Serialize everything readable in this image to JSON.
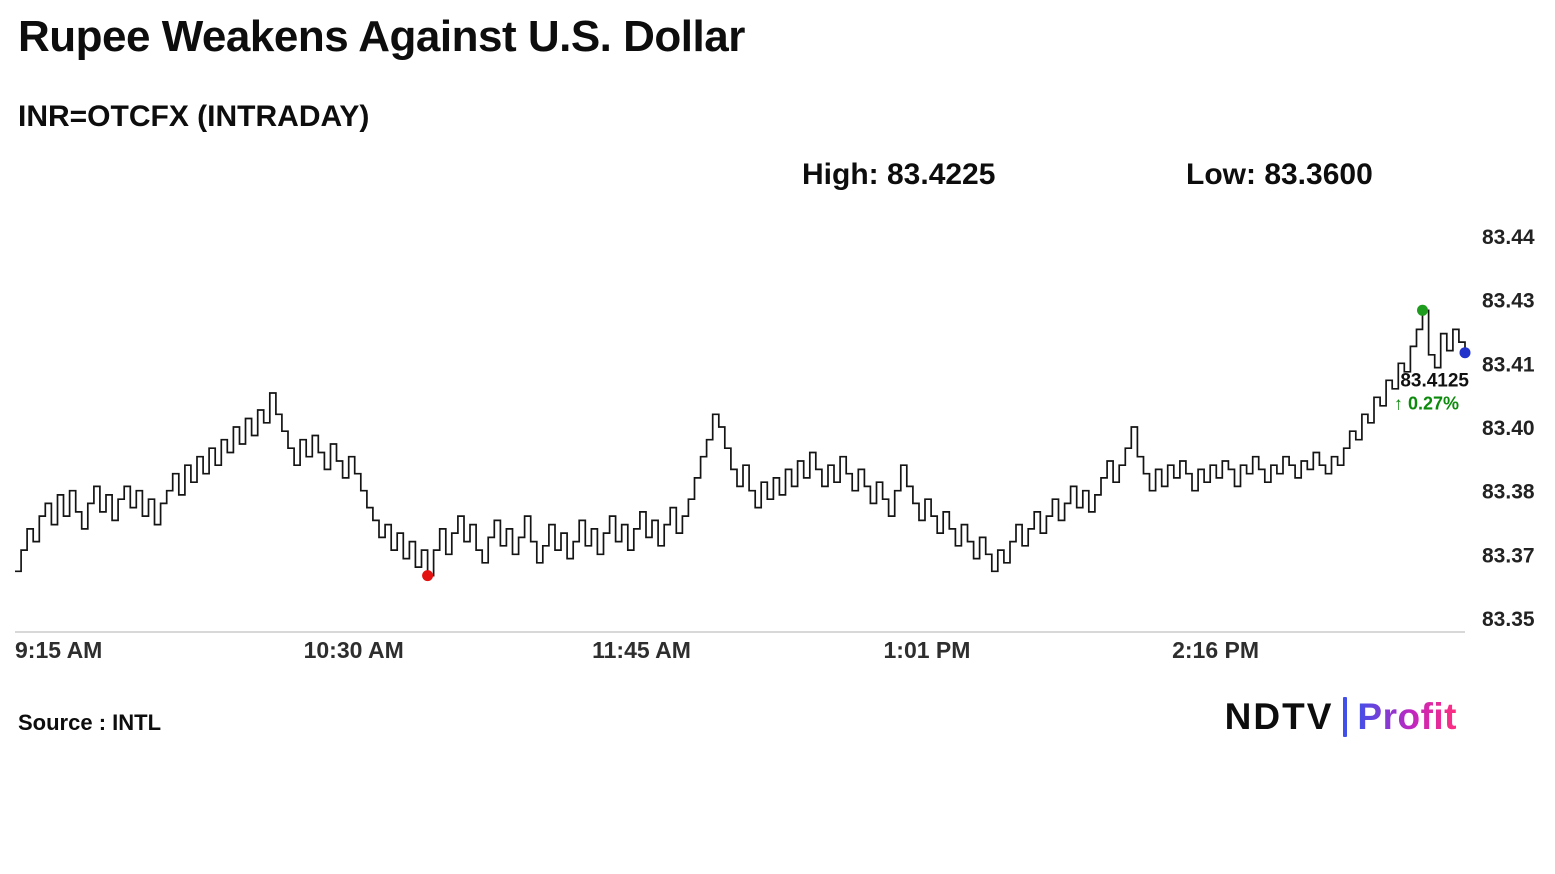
{
  "header": {
    "title": "Rupee Weakens Against U.S. Dollar",
    "subtitle": "INR=OTCFX (INTRADAY)",
    "high_label": "High:",
    "high_value": "83.4225",
    "low_label": "Low:",
    "low_value": "83.3600"
  },
  "annotation": {
    "price": "83.4125",
    "change": "↑ 0.27%"
  },
  "footer": {
    "source": "Source : INTL",
    "logo": {
      "ndtv": "NDTV",
      "separator": "|",
      "profit": "Profit"
    }
  },
  "colors": {
    "line": "#141414",
    "axis": "#d8d8d8",
    "tick_text": "#222222",
    "low_marker": "#e41111",
    "high_marker": "#1e9c1e",
    "last_marker": "#2233cc",
    "change_green": "#0b8a0b",
    "logo_bar": "#4150e8",
    "profit_gradient_start": "#4150e8",
    "profit_gradient_mid": "#c026c0",
    "profit_gradient_end": "#ff2e7e"
  },
  "chart_data": {
    "type": "line",
    "title": "Rupee Weakens Against U.S. Dollar",
    "instrument": "INR=OTCFX (INTRADAY)",
    "high": 83.4225,
    "low": 83.36,
    "last": 83.4125,
    "change_pct": 0.27,
    "ylim": [
      83.35,
      83.44
    ],
    "grid": false,
    "y_axis_side": "right",
    "y_ticks": [
      {
        "label": "83.44",
        "value": 83.44
      },
      {
        "label": "83.43",
        "value": 83.425
      },
      {
        "label": "83.41",
        "value": 83.41
      },
      {
        "label": "83.40",
        "value": 83.395
      },
      {
        "label": "83.38",
        "value": 83.38
      },
      {
        "label": "83.37",
        "value": 83.365
      },
      {
        "label": "83.35",
        "value": 83.35
      }
    ],
    "x_ticks": [
      {
        "label": "9:15 AM",
        "pos": 0.0
      },
      {
        "label": "10:30 AM",
        "pos": 0.199
      },
      {
        "label": "11:45 AM",
        "pos": 0.398
      },
      {
        "label": "1:01 PM",
        "pos": 0.599
      },
      {
        "label": "2:16 PM",
        "pos": 0.798
      }
    ],
    "markers": [
      {
        "name": "low-marker",
        "index": 68,
        "color": "#e41111"
      },
      {
        "name": "high-marker",
        "index": 232,
        "color": "#1e9c1e"
      },
      {
        "name": "last-marker",
        "index": 239,
        "color": "#2233cc"
      }
    ],
    "values": [
      83.361,
      83.366,
      83.371,
      83.368,
      83.374,
      83.377,
      83.372,
      83.379,
      83.374,
      83.38,
      83.375,
      83.371,
      83.377,
      83.381,
      83.375,
      83.379,
      83.373,
      83.378,
      83.381,
      83.376,
      83.38,
      83.374,
      83.378,
      83.372,
      83.377,
      83.38,
      83.384,
      83.379,
      83.386,
      83.382,
      83.388,
      83.384,
      83.39,
      83.386,
      83.392,
      83.389,
      83.395,
      83.391,
      83.397,
      83.393,
      83.399,
      83.396,
      83.403,
      83.398,
      83.394,
      83.39,
      83.386,
      83.392,
      83.388,
      83.393,
      83.389,
      83.385,
      83.391,
      83.387,
      83.383,
      83.388,
      83.384,
      83.38,
      83.376,
      83.373,
      83.369,
      83.372,
      83.366,
      83.37,
      83.364,
      83.368,
      83.362,
      83.366,
      83.36,
      83.366,
      83.371,
      83.365,
      83.37,
      83.374,
      83.368,
      83.372,
      83.366,
      83.363,
      83.369,
      83.373,
      83.367,
      83.371,
      83.365,
      83.369,
      83.374,
      83.368,
      83.363,
      83.367,
      83.372,
      83.366,
      83.37,
      83.364,
      83.368,
      83.373,
      83.367,
      83.371,
      83.365,
      83.37,
      83.374,
      83.368,
      83.372,
      83.366,
      83.371,
      83.375,
      83.369,
      83.373,
      83.367,
      83.372,
      83.376,
      83.37,
      83.374,
      83.378,
      83.383,
      83.388,
      83.392,
      83.398,
      83.395,
      83.39,
      83.385,
      83.381,
      83.386,
      83.38,
      83.376,
      83.382,
      83.378,
      83.383,
      83.379,
      83.385,
      83.381,
      83.387,
      83.383,
      83.389,
      83.385,
      83.381,
      83.386,
      83.382,
      83.388,
      83.384,
      83.38,
      83.385,
      83.381,
      83.377,
      83.382,
      83.378,
      83.374,
      83.38,
      83.386,
      83.381,
      83.377,
      83.373,
      83.378,
      83.374,
      83.37,
      83.375,
      83.371,
      83.367,
      83.372,
      83.368,
      83.364,
      83.369,
      83.365,
      83.361,
      83.366,
      83.363,
      83.368,
      83.372,
      83.367,
      83.371,
      83.375,
      83.37,
      83.374,
      83.378,
      83.373,
      83.377,
      83.381,
      83.376,
      83.38,
      83.375,
      83.379,
      83.383,
      83.387,
      83.382,
      83.386,
      83.39,
      83.395,
      83.388,
      83.384,
      83.38,
      83.385,
      83.381,
      83.386,
      83.383,
      83.387,
      83.384,
      83.38,
      83.385,
      83.382,
      83.386,
      83.383,
      83.387,
      83.385,
      83.381,
      83.386,
      83.384,
      83.388,
      83.385,
      83.382,
      83.386,
      83.384,
      83.388,
      83.386,
      83.383,
      83.387,
      83.385,
      83.389,
      83.386,
      83.384,
      83.388,
      83.386,
      83.39,
      83.394,
      83.392,
      83.398,
      83.396,
      83.402,
      83.4,
      83.406,
      83.404,
      83.41,
      83.408,
      83.414,
      83.418,
      83.4225,
      83.412,
      83.409,
      83.417,
      83.413,
      83.418,
      83.415,
      83.4125
    ]
  }
}
